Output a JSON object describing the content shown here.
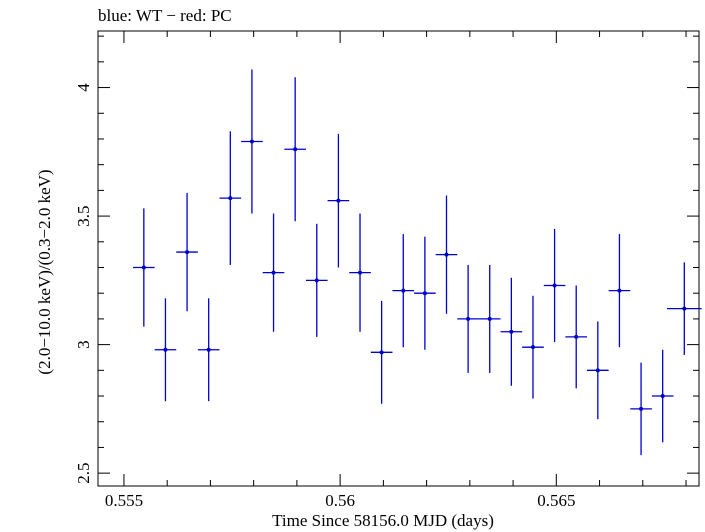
{
  "chart_data": {
    "type": "scatter",
    "title": "blue: WT − red: PC",
    "xlabel": "Time Since 58156.0 MJD (days)",
    "ylabel": "(2.0−10.0 keV)/(0.3−2.0 keV)",
    "xlim": [
      0.5544,
      0.5683
    ],
    "ylim": [
      2.45,
      4.22
    ],
    "xticks": [
      {
        "value": 0.555,
        "label": "0.555"
      },
      {
        "value": 0.56,
        "label": "0.56"
      },
      {
        "value": 0.565,
        "label": "0.565"
      }
    ],
    "yticks": [
      {
        "value": 2.5,
        "label": "2.5"
      },
      {
        "value": 3,
        "label": "3"
      },
      {
        "value": 3.5,
        "label": "3.5"
      },
      {
        "value": 4,
        "label": "4"
      }
    ],
    "grid": false,
    "series": [
      {
        "color": "#0000cc",
        "points": [
          {
            "x": 0.55546,
            "xerr": 0.00025,
            "y": 3.3,
            "yerr": 0.23
          },
          {
            "x": 0.55596,
            "xerr": 0.00025,
            "y": 2.98,
            "yerr": 0.2
          },
          {
            "x": 0.55646,
            "xerr": 0.00025,
            "y": 3.36,
            "yerr": 0.23
          },
          {
            "x": 0.55696,
            "xerr": 0.00025,
            "y": 2.98,
            "yerr": 0.2
          },
          {
            "x": 0.55746,
            "xerr": 0.00025,
            "y": 3.57,
            "yerr": 0.26
          },
          {
            "x": 0.55796,
            "xerr": 0.00025,
            "y": 3.79,
            "yerr": 0.28
          },
          {
            "x": 0.55846,
            "xerr": 0.00025,
            "y": 3.28,
            "yerr": 0.23
          },
          {
            "x": 0.55896,
            "xerr": 0.00025,
            "y": 3.76,
            "yerr": 0.28
          },
          {
            "x": 0.55946,
            "xerr": 0.00025,
            "y": 3.25,
            "yerr": 0.22
          },
          {
            "x": 0.55996,
            "xerr": 0.00025,
            "y": 3.56,
            "yerr": 0.26
          },
          {
            "x": 0.56046,
            "xerr": 0.00025,
            "y": 3.28,
            "yerr": 0.23
          },
          {
            "x": 0.56096,
            "xerr": 0.00025,
            "y": 2.97,
            "yerr": 0.2
          },
          {
            "x": 0.56146,
            "xerr": 0.00025,
            "y": 3.21,
            "yerr": 0.22
          },
          {
            "x": 0.56196,
            "xerr": 0.00025,
            "y": 3.2,
            "yerr": 0.22
          },
          {
            "x": 0.56246,
            "xerr": 0.00025,
            "y": 3.35,
            "yerr": 0.23
          },
          {
            "x": 0.56296,
            "xerr": 0.00025,
            "y": 3.1,
            "yerr": 0.21
          },
          {
            "x": 0.56346,
            "xerr": 0.00025,
            "y": 3.1,
            "yerr": 0.21
          },
          {
            "x": 0.56396,
            "xerr": 0.00025,
            "y": 3.05,
            "yerr": 0.21
          },
          {
            "x": 0.56446,
            "xerr": 0.00025,
            "y": 2.99,
            "yerr": 0.2
          },
          {
            "x": 0.56496,
            "xerr": 0.00025,
            "y": 3.23,
            "yerr": 0.22
          },
          {
            "x": 0.56546,
            "xerr": 0.00025,
            "y": 3.03,
            "yerr": 0.2
          },
          {
            "x": 0.56596,
            "xerr": 0.00025,
            "y": 2.9,
            "yerr": 0.19
          },
          {
            "x": 0.56646,
            "xerr": 0.00025,
            "y": 3.21,
            "yerr": 0.22
          },
          {
            "x": 0.56696,
            "xerr": 0.00025,
            "y": 2.75,
            "yerr": 0.18
          },
          {
            "x": 0.56746,
            "xerr": 0.00025,
            "y": 2.8,
            "yerr": 0.18
          },
          {
            "x": 0.56796,
            "xerr": 0.0004,
            "y": 3.14,
            "yerr": 0.18
          }
        ]
      }
    ]
  }
}
